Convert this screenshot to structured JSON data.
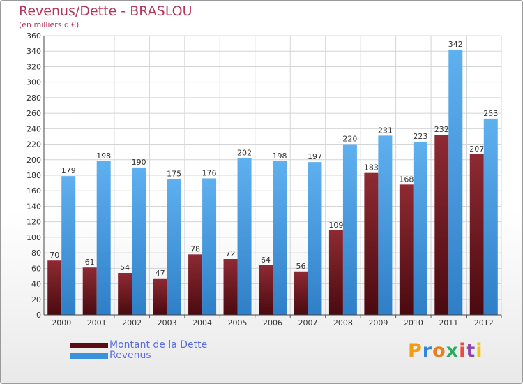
{
  "title": "Revenus/Dette - BRASLOU",
  "subtitle": "(en milliers d'€)",
  "colors": {
    "debt": "#7a1c24",
    "revenue": "#4a9fe3",
    "title": "#b5355a",
    "legend_text": "#5b6fe0"
  },
  "legend": [
    {
      "label": "Montant de la Dette",
      "color": "#5a0c12"
    },
    {
      "label": "Revenus",
      "color": "#3a92dd"
    }
  ],
  "logo": {
    "letters": [
      "P",
      "r",
      "o",
      "x",
      "i",
      "t",
      "i"
    ],
    "colors": [
      "#f39c12",
      "#2e86de",
      "#e67e22",
      "#27ae60",
      "#e74c3c",
      "#8e44ad",
      "#f1c40f"
    ]
  },
  "chart_data": {
    "type": "bar",
    "categories": [
      "2000",
      "2001",
      "2002",
      "2003",
      "2004",
      "2005",
      "2006",
      "2007",
      "2008",
      "2009",
      "2010",
      "2011",
      "2012"
    ],
    "series": [
      {
        "name": "Montant de la Dette",
        "values": [
          70,
          61,
          54,
          47,
          78,
          72,
          64,
          56,
          109,
          183,
          168,
          232,
          207
        ]
      },
      {
        "name": "Revenus",
        "values": [
          179,
          198,
          190,
          175,
          176,
          202,
          198,
          197,
          220,
          231,
          223,
          342,
          253
        ]
      }
    ],
    "ylim": [
      0,
      360
    ],
    "yticks": [
      0,
      20,
      40,
      60,
      80,
      100,
      120,
      140,
      160,
      180,
      200,
      220,
      240,
      260,
      280,
      300,
      320,
      340,
      360
    ],
    "grid": true,
    "legend_position": "bottom-left"
  }
}
